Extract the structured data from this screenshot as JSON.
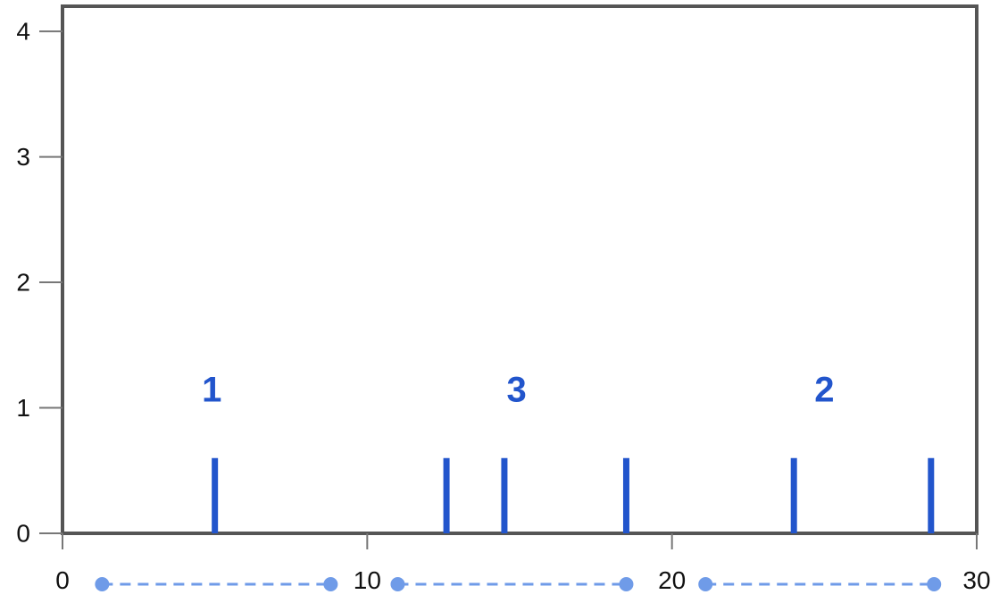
{
  "chart_data": {
    "type": "rug",
    "xlim": [
      0,
      30
    ],
    "ylim": [
      0,
      4.2
    ],
    "x_ticks": [
      0,
      10,
      20,
      30
    ],
    "y_ticks": [
      0,
      1,
      2,
      3,
      4
    ],
    "rug_x": [
      5.0,
      12.6,
      14.5,
      18.5,
      24.0,
      28.5
    ],
    "rug_height": 0.6,
    "count_labels": [
      {
        "text": "1",
        "x": 4.9,
        "y": 1.05
      },
      {
        "text": "3",
        "x": 14.9,
        "y": 1.05
      },
      {
        "text": "2",
        "x": 25.0,
        "y": 1.05
      }
    ],
    "bins": [
      {
        "start": 1.3,
        "end": 8.8
      },
      {
        "start": 11.0,
        "end": 18.5
      },
      {
        "start": 21.1,
        "end": 28.6
      }
    ],
    "colors": {
      "rug": "#2255cc",
      "bins": "#6f9be8",
      "frame": "#555555",
      "text": "#111111"
    }
  }
}
